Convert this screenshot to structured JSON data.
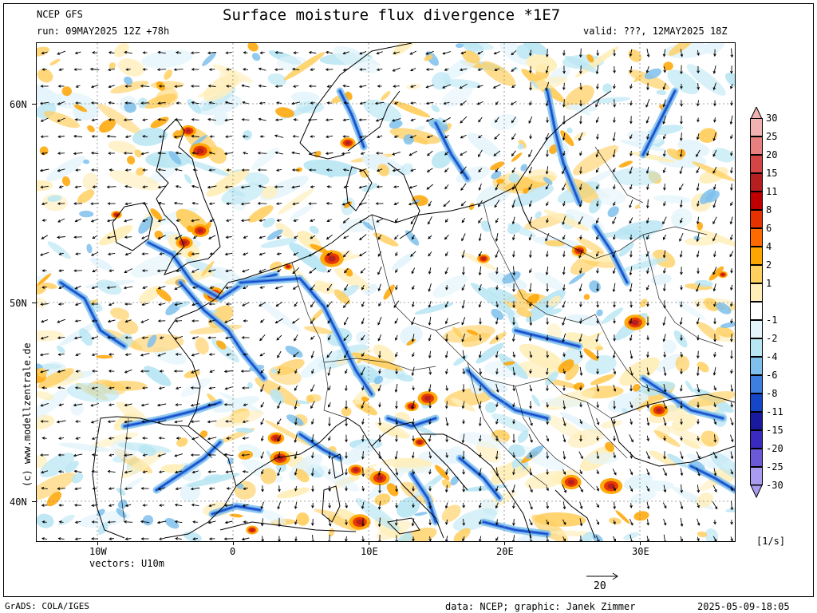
{
  "header": {
    "model": "NCEP GFS",
    "title": "Surface moisture flux divergence *1E7",
    "run": "run: 09MAY2025 12Z +78h",
    "valid": "valid: ???, 12MAY2025 18Z"
  },
  "axes": {
    "lat_labels": [
      "60N",
      "50N",
      "40N"
    ],
    "lon_labels": [
      "10W",
      "0",
      "10E",
      "20E",
      "30E"
    ]
  },
  "side_text": "(c) www.modellzentrale.de",
  "vectors_label": "vectors: U10m",
  "vector_scale": "20",
  "units": "[1/s]",
  "footer": {
    "grads": "GrADS: COLA/IGES",
    "credit": "data: NCEP; graphic: Janek Zimmer",
    "timestamp": "2025-05-09-18:05"
  },
  "colorbar": {
    "labels": [
      "30",
      "25",
      "20",
      "15",
      "11",
      "8",
      "6",
      "4",
      "2",
      "1",
      "-1",
      "-2",
      "-4",
      "-6",
      "-8",
      "-11",
      "-15",
      "-20",
      "-25",
      "-30"
    ],
    "colors": [
      "#f2b2b2",
      "#e98080",
      "#d64545",
      "#b51f1f",
      "#c00000",
      "#e63200",
      "#ff6a00",
      "#ffa500",
      "#ffcf60",
      "#ffeeb8",
      "#ffffff",
      "#e3f4fb",
      "#b9e6f3",
      "#7fc0ec",
      "#3d7fe0",
      "#1546c8",
      "#1a1a9e",
      "#3a2ac0",
      "#6a5ad8",
      "#a99cf0"
    ]
  }
}
